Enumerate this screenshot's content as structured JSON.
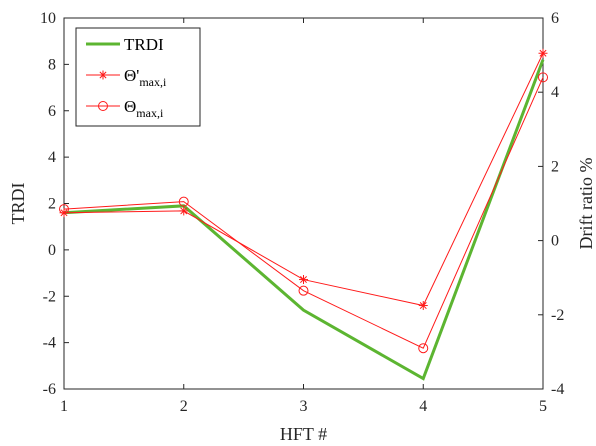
{
  "chart_data": {
    "type": "line",
    "xlabel": "HFT #",
    "ylabel_left": "TRDI",
    "ylabel_right": "Drift ratio %",
    "x": [
      1,
      2,
      3,
      4,
      5
    ],
    "xlim": [
      1,
      5
    ],
    "ylim_left": [
      -6,
      10
    ],
    "ylim_right": [
      -4,
      6
    ],
    "xticks": [
      "1",
      "2",
      "3",
      "4",
      "5"
    ],
    "yticks_left": [
      "-6",
      "-4",
      "-2",
      "0",
      "2",
      "4",
      "6",
      "8",
      "10"
    ],
    "yticks_right": [
      "-4",
      "-2",
      "0",
      "2",
      "4",
      "6"
    ],
    "grid": false,
    "legend_position": "top-left",
    "series": [
      {
        "name": "TRDI",
        "axis": "left",
        "values": [
          1.6,
          1.9,
          -2.6,
          -5.55,
          8.2
        ],
        "color": "#5cb531",
        "marker": "none"
      },
      {
        "name": "Θ'",
        "subscript": "max,i",
        "axis": "right",
        "values": [
          0.75,
          0.8,
          -1.05,
          -1.75,
          5.05
        ],
        "color": "#ff1a1a",
        "marker": "star"
      },
      {
        "name": "Θ",
        "subscript": "max,i",
        "axis": "right",
        "values": [
          0.85,
          1.05,
          -1.35,
          -2.9,
          4.4
        ],
        "color": "#ff1a1a",
        "marker": "circle"
      }
    ]
  }
}
